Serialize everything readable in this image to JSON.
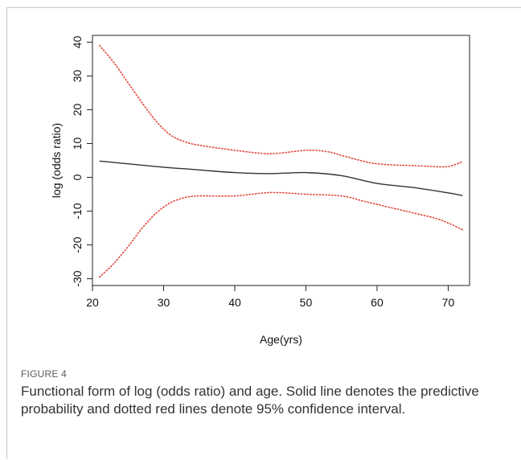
{
  "figure": {
    "label": "FIGURE 4",
    "caption": "Functional form of log (odds ratio) and age. Solid line denotes the predictive probability and dotted red lines denote 95% confidence interval."
  },
  "chart_data": {
    "type": "line",
    "title": "",
    "xlabel": "Age(yrs)",
    "ylabel": "log (odds ratio)",
    "xlim": [
      20,
      73
    ],
    "ylim": [
      -32,
      42
    ],
    "xticks": [
      20,
      30,
      40,
      50,
      60,
      70
    ],
    "yticks": [
      -30,
      -20,
      -10,
      0,
      10,
      20,
      30,
      40
    ],
    "grid": false,
    "series": [
      {
        "style": "solid",
        "color": "#333333",
        "x": [
          21,
          25,
          30,
          35,
          40,
          45,
          50,
          55,
          60,
          65,
          70,
          72
        ],
        "y": [
          4.8,
          4.0,
          3.0,
          2.2,
          1.4,
          1.1,
          1.4,
          0.5,
          -1.8,
          -3.0,
          -4.6,
          -5.4
        ]
      },
      {
        "style": "dotted",
        "color": "#e0453a",
        "x": [
          21,
          23,
          25,
          27,
          29,
          31,
          33,
          35,
          40,
          45,
          50,
          53,
          55,
          58,
          60,
          63,
          65,
          68,
          70,
          72
        ],
        "y": [
          39,
          34,
          28,
          22,
          16.5,
          12.5,
          10.5,
          9.5,
          8,
          7,
          8,
          7.6,
          6.5,
          4.8,
          4,
          3.6,
          3.5,
          3.2,
          3.2,
          4.6
        ]
      },
      {
        "style": "dotted",
        "color": "#e0453a",
        "x": [
          21,
          23,
          25,
          27,
          29,
          31,
          33,
          35,
          40,
          45,
          50,
          55,
          58,
          60,
          63,
          65,
          68,
          70,
          72
        ],
        "y": [
          -29.5,
          -25.5,
          -20.5,
          -15,
          -10.5,
          -7.5,
          -6,
          -5.5,
          -5.5,
          -4.5,
          -5,
          -5.5,
          -7,
          -8,
          -9.5,
          -10.5,
          -12,
          -13.5,
          -15.5
        ]
      }
    ]
  }
}
